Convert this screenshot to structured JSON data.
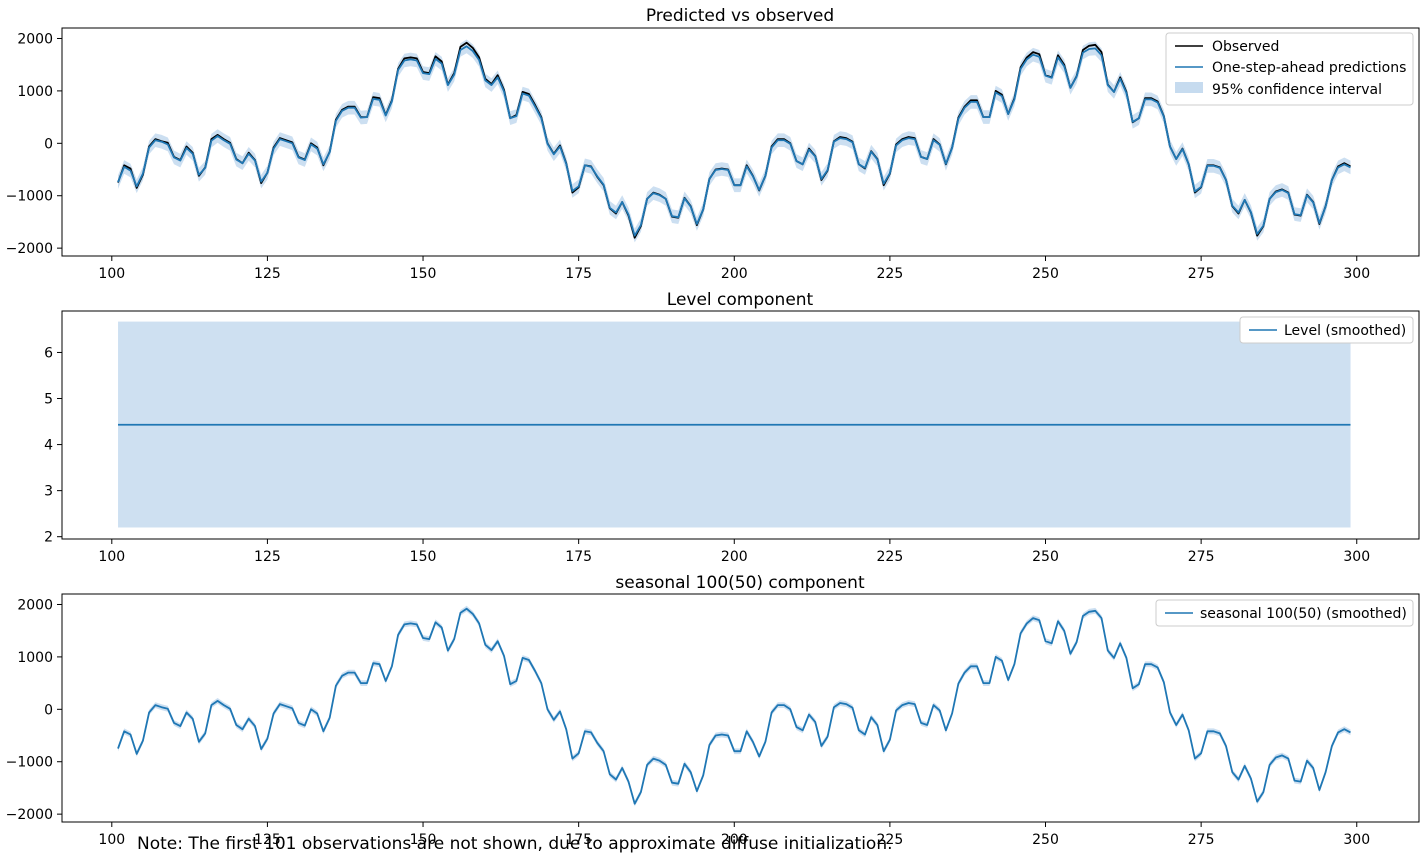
{
  "note": "Note: The first 101 observations are not shown, due to approximate diffuse initialization.",
  "colors": {
    "observed": "#000000",
    "prediction": "#1f77b4",
    "band": "#c6dbef"
  },
  "chart_data": [
    {
      "type": "line",
      "title": "Predicted vs observed",
      "xlim": [
        92,
        310
      ],
      "ylim": [
        -2150,
        2200
      ],
      "x_ticks": [
        100,
        125,
        150,
        175,
        200,
        225,
        250,
        275,
        300
      ],
      "y_ticks": [
        -2000,
        -1000,
        0,
        1000,
        2000
      ],
      "x_tick_labels": [
        "100",
        "125",
        "150",
        "175",
        "200",
        "225",
        "250",
        "275",
        "300"
      ],
      "y_tick_labels": [
        "−2000",
        "−1000",
        "0",
        "1000",
        "2000"
      ],
      "legend_position": "upper right",
      "legend": [
        "Observed",
        "One-step-ahead predictions",
        "95% confidence interval"
      ],
      "x_start": 101,
      "x_step": 1,
      "series": [
        {
          "name": "Observed",
          "color": "#000000",
          "values": [
            -750,
            -420,
            -480,
            -850,
            -600,
            -60,
            80,
            40,
            10,
            -260,
            -320,
            -60,
            -180,
            -620,
            -460,
            80,
            160,
            80,
            10,
            -300,
            -380,
            -180,
            -320,
            -760,
            -560,
            -80,
            100,
            60,
            20,
            -260,
            -310,
            0,
            -80,
            -420,
            -160,
            450,
            640,
            700,
            700,
            500,
            500,
            880,
            860,
            540,
            820,
            1420,
            1620,
            1640,
            1620,
            1360,
            1340,
            1660,
            1560,
            1120,
            1340,
            1840,
            1920,
            1820,
            1640,
            1230,
            1130,
            1300,
            1020,
            480,
            540,
            980,
            940,
            730,
            500,
            0,
            -200,
            -40,
            -380,
            -940,
            -840,
            -420,
            -440,
            -640,
            -800,
            -1240,
            -1340,
            -1120,
            -1380,
            -1800,
            -1580,
            -1060,
            -940,
            -980,
            -1060,
            -1400,
            -1420,
            -1040,
            -1200,
            -1560,
            -1260,
            -680,
            -500,
            -480,
            -500,
            -800,
            -800,
            -420,
            -620,
            -900,
            -620,
            -60,
            80,
            80,
            0,
            -340,
            -400,
            -100,
            -240,
            -700,
            -520,
            40,
            120,
            100,
            30,
            -400,
            -480,
            -150,
            -300,
            -800,
            -580,
            -20,
            80,
            120,
            100,
            -260,
            -300,
            80,
            -20,
            -400,
            -80,
            490,
            700,
            820,
            820,
            500,
            500,
            1000,
            930,
            560,
            860,
            1450,
            1640,
            1740,
            1700,
            1300,
            1260,
            1680,
            1500,
            1060,
            1280,
            1780,
            1860,
            1880,
            1740,
            1120,
            980,
            1260,
            980,
            400,
            480,
            860,
            860,
            800,
            520,
            -60,
            -300,
            -100,
            -400,
            -940,
            -840,
            -420,
            -420,
            -460,
            -700,
            -1200,
            -1340,
            -1080,
            -1320,
            -1760,
            -1580,
            -1060,
            -920,
            -880,
            -940,
            -1360,
            -1380,
            -980,
            -1120,
            -1540,
            -1200,
            -700,
            -440,
            -380,
            -440
          ]
        },
        {
          "name": "One-step-ahead predictions",
          "color": "#1f77b4",
          "values": [
            -740,
            -450,
            -520,
            -820,
            -580,
            -80,
            60,
            30,
            -20,
            -270,
            -330,
            -90,
            -200,
            -600,
            -470,
            50,
            140,
            60,
            -10,
            -310,
            -380,
            -200,
            -330,
            -730,
            -560,
            -100,
            80,
            40,
            0,
            -270,
            -320,
            -20,
            -100,
            -400,
            -170,
            430,
            620,
            680,
            680,
            490,
            500,
            850,
            830,
            530,
            800,
            1400,
            1580,
            1600,
            1580,
            1340,
            1320,
            1610,
            1520,
            1110,
            1310,
            1780,
            1850,
            1760,
            1590,
            1200,
            1110,
            1260,
            990,
            480,
            520,
            950,
            910,
            700,
            480,
            -10,
            -210,
            -60,
            -390,
            -910,
            -820,
            -420,
            -450,
            -630,
            -790,
            -1230,
            -1320,
            -1120,
            -1360,
            -1760,
            -1560,
            -1060,
            -950,
            -990,
            -1060,
            -1390,
            -1410,
            -1050,
            -1210,
            -1540,
            -1260,
            -680,
            -510,
            -490,
            -510,
            -800,
            -800,
            -440,
            -630,
            -890,
            -620,
            -80,
            60,
            60,
            -10,
            -340,
            -400,
            -120,
            -250,
            -680,
            -510,
            30,
            100,
            80,
            20,
            -400,
            -470,
            -160,
            -310,
            -770,
            -570,
            -40,
            60,
            100,
            80,
            -260,
            -300,
            60,
            -30,
            -390,
            -90,
            470,
            680,
            790,
            790,
            500,
            500,
            970,
            900,
            560,
            840,
            1420,
            1600,
            1690,
            1650,
            1290,
            1250,
            1640,
            1470,
            1060,
            1270,
            1730,
            1800,
            1810,
            1680,
            1110,
            980,
            1230,
            960,
            410,
            480,
            840,
            840,
            780,
            510,
            -60,
            -300,
            -110,
            -400,
            -920,
            -830,
            -430,
            -430,
            -470,
            -700,
            -1190,
            -1320,
            -1080,
            -1310,
            -1730,
            -1570,
            -1060,
            -930,
            -890,
            -950,
            -1350,
            -1370,
            -990,
            -1130,
            -1520,
            -1210,
            -700,
            -460,
            -400,
            -460
          ]
        }
      ],
      "ci_halfwidth": 130
    },
    {
      "type": "line",
      "title": "Level component",
      "xlim": [
        92,
        310
      ],
      "ylim": [
        1.95,
        6.9
      ],
      "x_ticks": [
        100,
        125,
        150,
        175,
        200,
        225,
        250,
        275,
        300
      ],
      "y_ticks": [
        2,
        3,
        4,
        5,
        6
      ],
      "x_tick_labels": [
        "100",
        "125",
        "150",
        "175",
        "200",
        "225",
        "250",
        "275",
        "300"
      ],
      "y_tick_labels": [
        "2",
        "3",
        "4",
        "5",
        "6"
      ],
      "legend_position": "upper right",
      "legend": [
        "Level (smoothed)"
      ],
      "x_range": [
        101,
        299
      ],
      "series": [
        {
          "name": "Level (smoothed)",
          "color": "#1f77b4",
          "value": 4.43
        }
      ],
      "band": [
        2.2,
        6.67
      ]
    },
    {
      "type": "line",
      "title": "seasonal 100(50) component",
      "xlim": [
        92,
        310
      ],
      "ylim": [
        -2150,
        2200
      ],
      "x_ticks": [
        100,
        125,
        150,
        175,
        200,
        225,
        250,
        275,
        300
      ],
      "y_ticks": [
        -2000,
        -1000,
        0,
        1000,
        2000
      ],
      "x_tick_labels": [
        "100",
        "125",
        "150",
        "175",
        "200",
        "225",
        "250",
        "275",
        "300"
      ],
      "y_tick_labels": [
        "−2000",
        "−1000",
        "0",
        "1000",
        "2000"
      ],
      "legend_position": "upper right",
      "legend": [
        "seasonal 100(50) (smoothed)"
      ],
      "x_start": 101,
      "x_step": 1,
      "series": [
        {
          "name": "seasonal 100(50) (smoothed)",
          "color": "#1f77b4",
          "same_as": "Observed"
        }
      ],
      "ci_halfwidth": 55
    }
  ]
}
